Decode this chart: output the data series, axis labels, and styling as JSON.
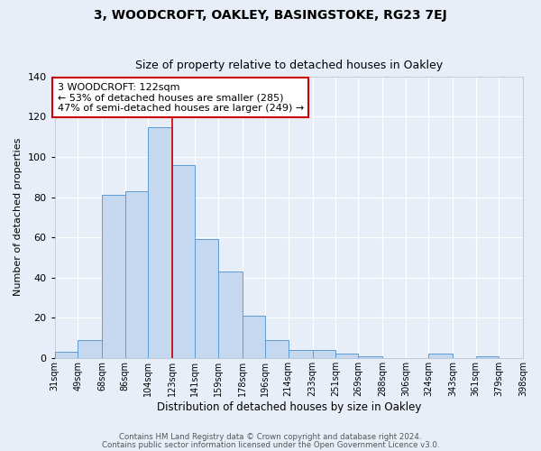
{
  "title1": "3, WOODCROFT, OAKLEY, BASINGSTOKE, RG23 7EJ",
  "title2": "Size of property relative to detached houses in Oakley",
  "xlabel": "Distribution of detached houses by size in Oakley",
  "ylabel": "Number of detached properties",
  "bin_edges": [
    31,
    49,
    68,
    86,
    104,
    123,
    141,
    159,
    178,
    196,
    214,
    233,
    251,
    269,
    288,
    306,
    324,
    343,
    361,
    379,
    398
  ],
  "bar_labels": [
    "31sqm",
    "49sqm",
    "68sqm",
    "86sqm",
    "104sqm",
    "123sqm",
    "141sqm",
    "159sqm",
    "178sqm",
    "196sqm",
    "214sqm",
    "233sqm",
    "251sqm",
    "269sqm",
    "288sqm",
    "306sqm",
    "324sqm",
    "343sqm",
    "361sqm",
    "379sqm",
    "398sqm"
  ],
  "counts": [
    3,
    9,
    81,
    83,
    115,
    96,
    59,
    43,
    21,
    9,
    4,
    4,
    2,
    1,
    0,
    0,
    2,
    0,
    1,
    0
  ],
  "bar_color": "#c5d8f0",
  "bar_edge_color": "#5b9bd5",
  "vline_x": 123,
  "vline_color": "#cc0000",
  "annotation_text": "3 WOODCROFT: 122sqm\n← 53% of detached houses are smaller (285)\n47% of semi-detached houses are larger (249) →",
  "annotation_box_color": "#ffffff",
  "annotation_box_edge_color": "#cc0000",
  "ylim": [
    0,
    140
  ],
  "yticks": [
    0,
    20,
    40,
    60,
    80,
    100,
    120,
    140
  ],
  "bg_color": "#e8eef8",
  "grid_color": "#ffffff",
  "footer1": "Contains HM Land Registry data © Crown copyright and database right 2024.",
  "footer2": "Contains public sector information licensed under the Open Government Licence v3.0."
}
